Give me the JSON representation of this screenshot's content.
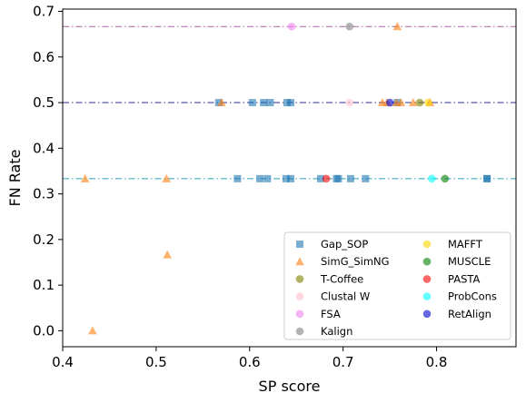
{
  "chart_data": {
    "type": "scatter",
    "xlabel": "SP score",
    "ylabel": "FN Rate",
    "xlim": [
      0.4,
      0.885
    ],
    "ylim": [
      -0.035,
      0.705
    ],
    "xticks": [
      0.4,
      0.5,
      0.6,
      0.7,
      0.8
    ],
    "xtick_labels": [
      "0.4",
      "0.5",
      "0.6",
      "0.7",
      "0.8"
    ],
    "yticks": [
      0.0,
      0.1,
      0.2,
      0.3,
      0.4,
      0.5,
      0.6,
      0.7
    ],
    "ytick_labels": [
      "0.0",
      "0.1",
      "0.2",
      "0.3",
      "0.4",
      "0.5",
      "0.6",
      "0.7"
    ],
    "grid": false,
    "legend_position": "lower-right",
    "reference_lines": [
      {
        "y": 0.6667,
        "color": "#a564a5"
      },
      {
        "y": 0.5,
        "color": "#2c2c8c"
      },
      {
        "y": 0.3333,
        "color": "#2aa0b8"
      }
    ],
    "series": [
      {
        "name": "Gap_SOP",
        "marker": "square",
        "color": "#1f77b4",
        "x": [
          0.567,
          0.603,
          0.615,
          0.622,
          0.64,
          0.644,
          0.587,
          0.611,
          0.619,
          0.639,
          0.644,
          0.676,
          0.693,
          0.695,
          0.708,
          0.724,
          0.854,
          0.854,
          0.758
        ],
        "y": [
          0.5,
          0.5,
          0.5,
          0.5,
          0.5,
          0.5,
          0.3333,
          0.3333,
          0.3333,
          0.3333,
          0.3333,
          0.3333,
          0.3333,
          0.3333,
          0.3333,
          0.3333,
          0.3333,
          0.3333,
          0.5
        ]
      },
      {
        "name": "SimG_SimNG",
        "marker": "triangle",
        "color": "#ff7f0e",
        "x": [
          0.432,
          0.512,
          0.424,
          0.511,
          0.57,
          0.742,
          0.747,
          0.757,
          0.762,
          0.775,
          0.793,
          0.758
        ],
        "y": [
          0.0,
          0.1667,
          0.3333,
          0.3333,
          0.5,
          0.5,
          0.5,
          0.5,
          0.5,
          0.5,
          0.5,
          0.6667
        ]
      },
      {
        "name": "T-Coffee",
        "marker": "circle",
        "color": "#808000",
        "x": [
          0.782
        ],
        "y": [
          0.5
        ]
      },
      {
        "name": "Clustal W",
        "marker": "circle",
        "color": "#ffc0cb",
        "x": [
          0.707
        ],
        "y": [
          0.5
        ]
      },
      {
        "name": "FSA",
        "marker": "circle",
        "color": "#ee82ee",
        "x": [
          0.645
        ],
        "y": [
          0.6667
        ]
      },
      {
        "name": "Kalign",
        "marker": "circle",
        "color": "#808080",
        "x": [
          0.707
        ],
        "y": [
          0.6667
        ]
      },
      {
        "name": "MAFFT",
        "marker": "circle",
        "color": "#ffd700",
        "x": [
          0.791
        ],
        "y": [
          0.5
        ]
      },
      {
        "name": "MUSCLE",
        "marker": "circle",
        "color": "#008000",
        "x": [
          0.809
        ],
        "y": [
          0.3333
        ]
      },
      {
        "name": "PASTA",
        "marker": "circle",
        "color": "#ff0000",
        "x": [
          0.682
        ],
        "y": [
          0.3333
        ]
      },
      {
        "name": "ProbCons",
        "marker": "circle",
        "color": "#00ffff",
        "x": [
          0.795
        ],
        "y": [
          0.3333
        ]
      },
      {
        "name": "RetAlign",
        "marker": "circle",
        "color": "#0000cd",
        "x": [
          0.75
        ],
        "y": [
          0.5
        ]
      }
    ]
  }
}
